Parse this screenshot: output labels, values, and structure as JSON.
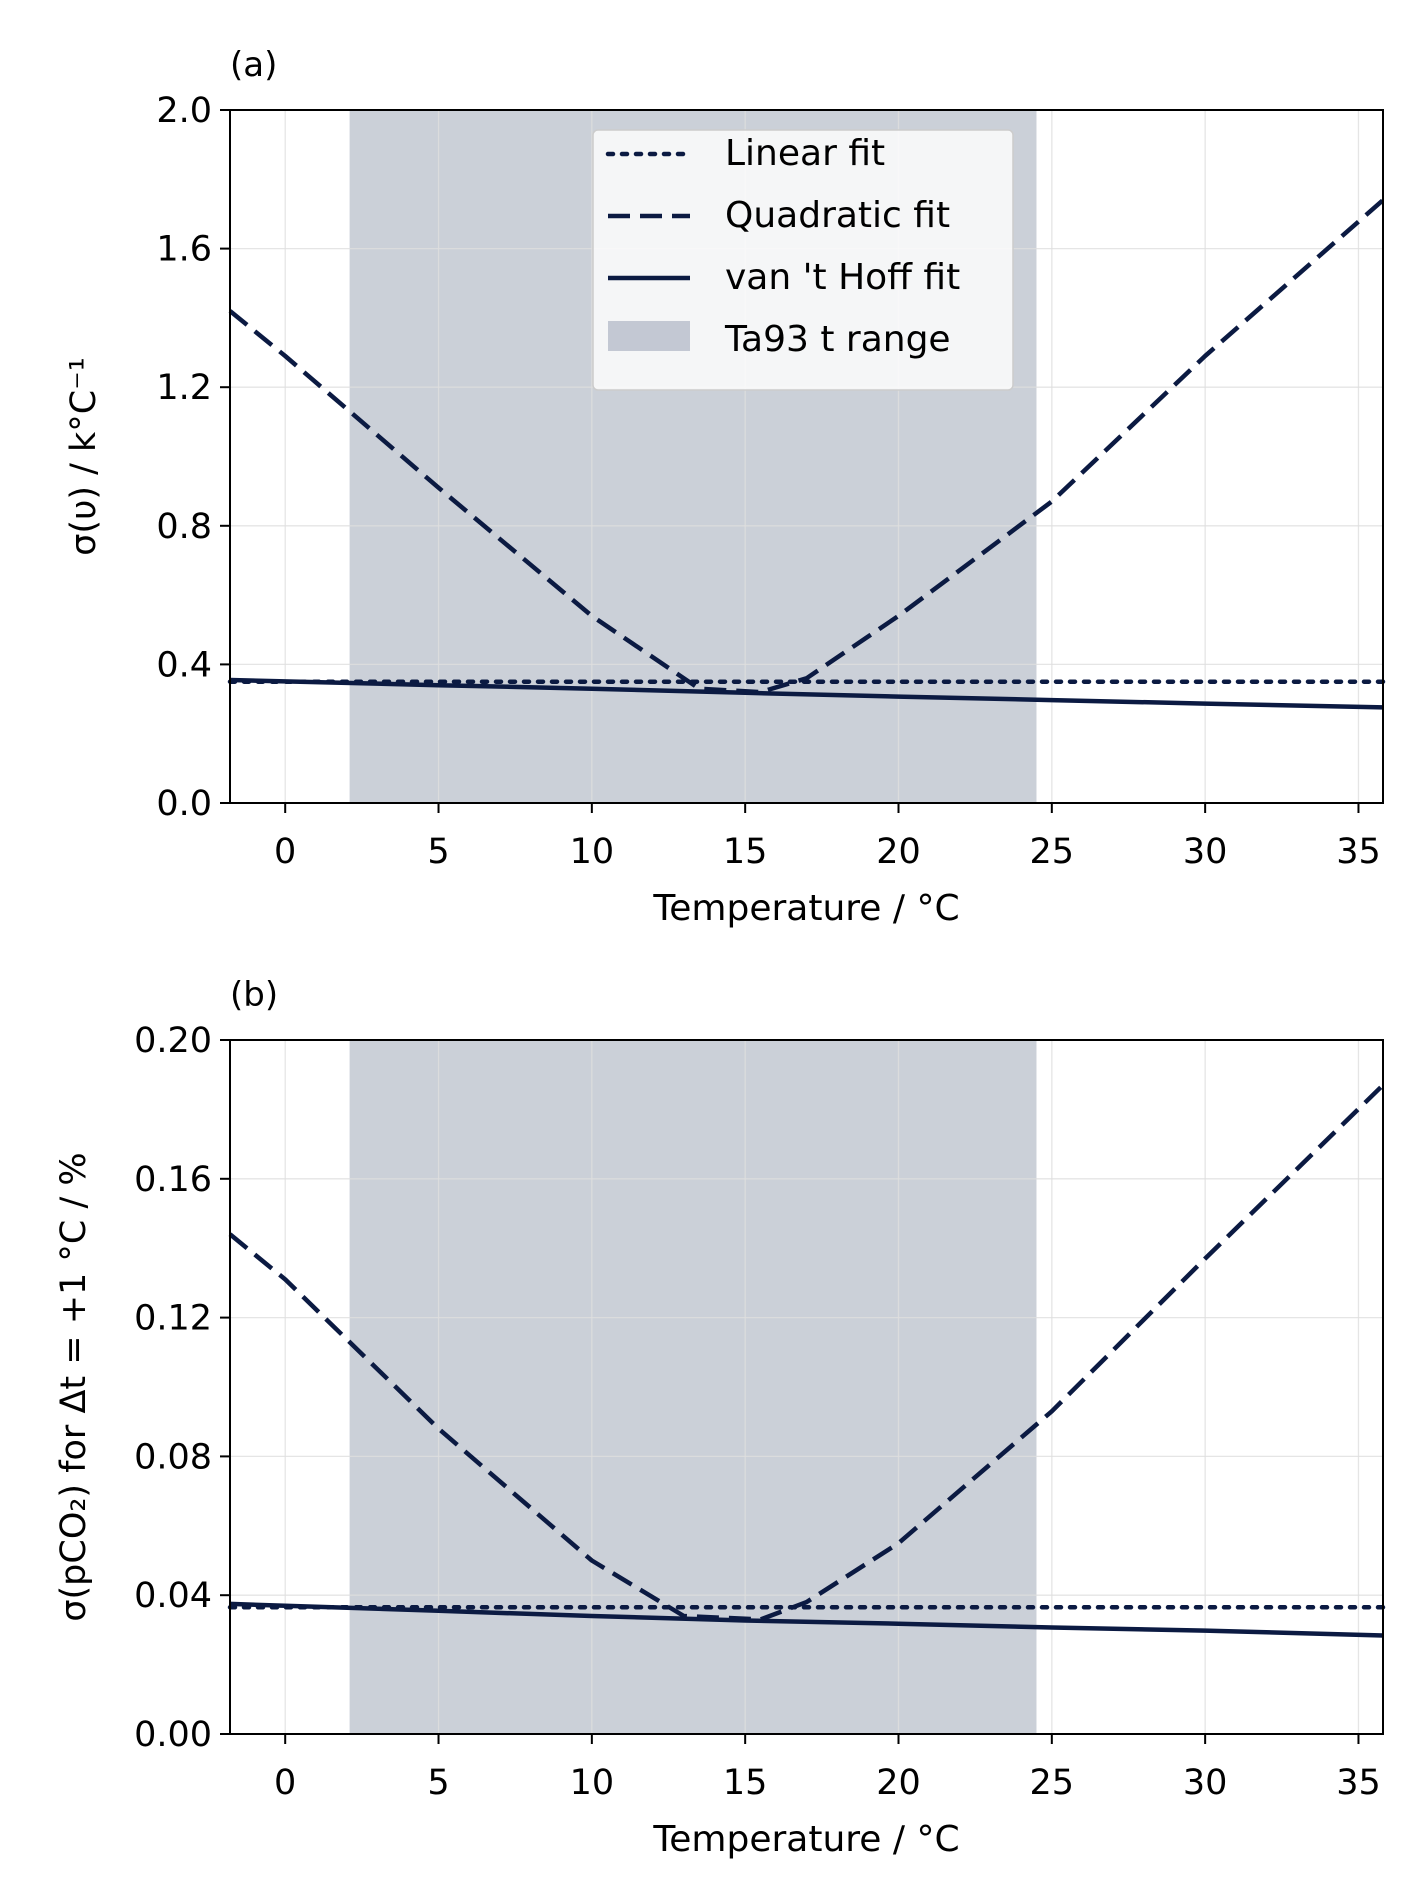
{
  "colors": {
    "line": "#0b1a42",
    "band": "#a9b0be",
    "legend_band": "#c3c8d3",
    "grid": "#dedede"
  },
  "xticks": [
    0,
    5,
    10,
    15,
    20,
    25,
    30,
    35
  ],
  "chart_data": [
    {
      "type": "line",
      "panel_label": "(a)",
      "xlabel": "Temperature / °C",
      "ylabel": "σ(υ) / k°C⁻¹",
      "xlim": [
        -1.8,
        35.8
      ],
      "ylim": [
        0,
        2.0
      ],
      "yticks": [
        "0.0",
        "0.4",
        "0.8",
        "1.2",
        "1.6",
        "2.0"
      ],
      "grid": true,
      "legend_position": "top-center",
      "shaded_region": {
        "label": "Ta93 t range",
        "x": [
          2.1,
          24.5
        ]
      },
      "series": [
        {
          "name": "Linear fit",
          "style": "dotted",
          "x": [
            -1.8,
            35.8
          ],
          "y": [
            0.35,
            0.35
          ]
        },
        {
          "name": "Quadratic fit",
          "style": "dashed",
          "x": [
            -1.8,
            0,
            5,
            10,
            13.5,
            15.5,
            17,
            20,
            25,
            30,
            35.8
          ],
          "y": [
            1.42,
            1.29,
            0.91,
            0.54,
            0.33,
            0.32,
            0.36,
            0.54,
            0.87,
            1.29,
            1.74
          ]
        },
        {
          "name": "van 't Hoff fit",
          "style": "solid",
          "x": [
            -1.8,
            5,
            10,
            15,
            20,
            25,
            30,
            35.8
          ],
          "y": [
            0.355,
            0.34,
            0.33,
            0.318,
            0.307,
            0.297,
            0.287,
            0.276
          ]
        }
      ]
    },
    {
      "type": "line",
      "panel_label": "(b)",
      "xlabel": "Temperature / °C",
      "ylabel": "σ(pCO₂) for Δt = +1 °C / %",
      "xlim": [
        -1.8,
        35.8
      ],
      "ylim": [
        0,
        0.2
      ],
      "yticks": [
        "0.00",
        "0.04",
        "0.08",
        "0.12",
        "0.16",
        "0.20"
      ],
      "grid": true,
      "shaded_region": {
        "x": [
          2.1,
          24.5
        ]
      },
      "series": [
        {
          "name": "Linear fit",
          "style": "dotted",
          "x": [
            -1.8,
            35.8
          ],
          "y": [
            0.0365,
            0.0365
          ]
        },
        {
          "name": "Quadratic fit",
          "style": "dashed",
          "x": [
            -1.8,
            0,
            5,
            10,
            13,
            15.5,
            17,
            20,
            25,
            30,
            35.8
          ],
          "y": [
            0.144,
            0.131,
            0.088,
            0.05,
            0.034,
            0.033,
            0.038,
            0.055,
            0.093,
            0.137,
            0.187
          ]
        },
        {
          "name": "van 't Hoff fit",
          "style": "solid",
          "x": [
            -1.8,
            5,
            10,
            15,
            20,
            25,
            30,
            35.8
          ],
          "y": [
            0.0375,
            0.0355,
            0.034,
            0.0327,
            0.0318,
            0.0307,
            0.0298,
            0.0284
          ]
        }
      ]
    }
  ]
}
